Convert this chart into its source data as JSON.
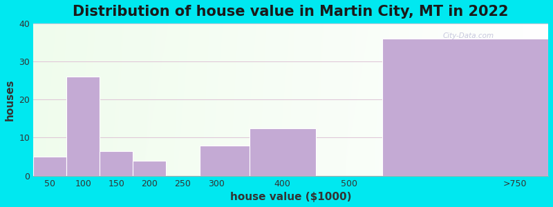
{
  "title": "Distribution of house value in Martin City, MT in 2022",
  "xlabel": "house value ($1000)",
  "ylabel": "houses",
  "bin_edges": [
    25,
    75,
    125,
    175,
    225,
    275,
    350,
    450,
    550,
    800
  ],
  "tick_positions": [
    50,
    100,
    150,
    200,
    250,
    300,
    400,
    500,
    750
  ],
  "tick_labels": [
    "50",
    "100",
    "150",
    "200",
    "250",
    "300",
    "400",
    "500",
    ">750"
  ],
  "values": [
    5,
    26,
    6.5,
    4,
    0,
    8,
    12.5,
    0,
    36
  ],
  "bar_color": "#c4aad4",
  "bar_edgecolor": "#ffffff",
  "ylim": [
    0,
    40
  ],
  "yticks": [
    0,
    10,
    20,
    30,
    40
  ],
  "background_outer": "#00e8f0",
  "grid_color": "#e0c8d8",
  "title_fontsize": 15,
  "axis_label_fontsize": 11,
  "tick_fontsize": 9,
  "watermark": "City-Data.com"
}
